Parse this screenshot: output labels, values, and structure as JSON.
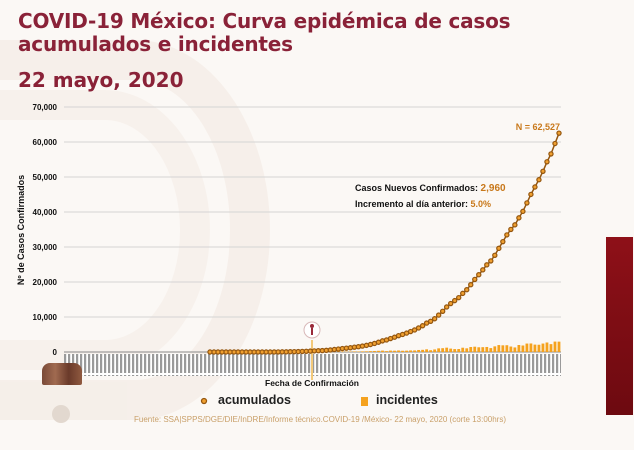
{
  "title": "COVID-19 México: Curva epidémica de casos acumulados e incidentes",
  "date": "22 mayo, 2020",
  "source": "Fuente: SSA|SPPS/DGE/DIE/InDRE/Informe técnico.COVID-19 /México- 22 mayo, 2020 (corte 13:00hrs)",
  "annotation": {
    "total": "N = 62,527",
    "new_cases_label": "Casos Nuevos Confirmados:",
    "new_cases_value": "2,960",
    "increase_label": "Incremento al día anterior:",
    "increase_value": "5.0%"
  },
  "colors": {
    "title": "#8a2238",
    "accent": "#c8781a",
    "bars": "#f5a21e",
    "marker_stroke": "#94560f",
    "side_bar": "#8e1018"
  },
  "chart_data": {
    "type": "line",
    "xlabel": "Fecha de Confirmación",
    "ylabel": "Nº de Casos Confirmados",
    "ylim": [
      0,
      70000
    ],
    "yticks": [
      "0",
      "10,000",
      "20,000",
      "30,000",
      "40,000",
      "50,000",
      "60,000",
      "70,000"
    ],
    "grid": true,
    "legend_position": "bottom",
    "series": [
      {
        "name": "acumulados",
        "type": "line-markers",
        "values": [
          0,
          0,
          0,
          1,
          4,
          5,
          5,
          5,
          5,
          5,
          6,
          7,
          7,
          7,
          7,
          8,
          12,
          26,
          41,
          53,
          82,
          93,
          118,
          164,
          203,
          251,
          316,
          367,
          405,
          475,
          585,
          717,
          848,
          993,
          1094,
          1215,
          1378,
          1510,
          1688,
          1890,
          2143,
          2439,
          2785,
          3181,
          3441,
          3844,
          4219,
          4661,
          5014,
          5399,
          5847,
          6297,
          6875,
          7497,
          8261,
          8772,
          9501,
          10544,
          11633,
          12872,
          13842,
          14677,
          15529,
          16752,
          17799,
          19224,
          20739,
          22088,
          23471,
          24905,
          26025,
          27634,
          29616,
          31522,
          33460,
          35022,
          36327,
          38324,
          40186,
          42595,
          45032,
          47144,
          49219,
          51633,
          54346,
          56594,
          59567,
          62527
        ]
      },
      {
        "name": "incidentes",
        "type": "bar",
        "derived_from": "acumulados daily difference"
      }
    ]
  }
}
